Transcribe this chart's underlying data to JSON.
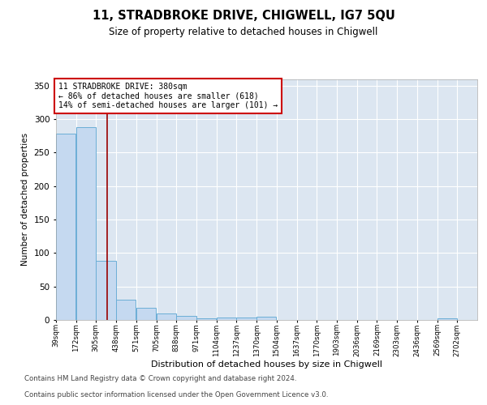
{
  "title": "11, STRADBROKE DRIVE, CHIGWELL, IG7 5QU",
  "subtitle": "Size of property relative to detached houses in Chigwell",
  "xlabel": "Distribution of detached houses by size in Chigwell",
  "ylabel": "Number of detached properties",
  "footnote1": "Contains HM Land Registry data © Crown copyright and database right 2024.",
  "footnote2": "Contains public sector information licensed under the Open Government Licence v3.0.",
  "annotation_line1": "11 STRADBROKE DRIVE: 380sqm",
  "annotation_line2": "← 86% of detached houses are smaller (618)",
  "annotation_line3": "14% of semi-detached houses are larger (101) →",
  "property_size": 380,
  "bar_edges": [
    39,
    172,
    305,
    438,
    571,
    705,
    838,
    971,
    1104,
    1237,
    1370,
    1504,
    1637,
    1770,
    1903,
    2036,
    2169,
    2303,
    2436,
    2569,
    2702
  ],
  "bar_heights": [
    278,
    288,
    88,
    30,
    18,
    10,
    6,
    3,
    4,
    4,
    5,
    0,
    0,
    0,
    0,
    0,
    0,
    0,
    0,
    3
  ],
  "bar_color": "#c5d9f0",
  "bar_edge_color": "#6baed6",
  "annotation_box_edgecolor": "#cc0000",
  "fig_background": "#ffffff",
  "plot_bg_color": "#dce6f1",
  "ylim": [
    0,
    360
  ],
  "yticks": [
    0,
    50,
    100,
    150,
    200,
    250,
    300,
    350
  ],
  "tick_labels": [
    "39sqm",
    "172sqm",
    "305sqm",
    "438sqm",
    "571sqm",
    "705sqm",
    "838sqm",
    "971sqm",
    "1104sqm",
    "1237sqm",
    "1370sqm",
    "1504sqm",
    "1637sqm",
    "1770sqm",
    "1903sqm",
    "2036sqm",
    "2169sqm",
    "2303sqm",
    "2436sqm",
    "2569sqm",
    "2702sqm"
  ],
  "vline_color": "#990000",
  "vline_x": 380
}
